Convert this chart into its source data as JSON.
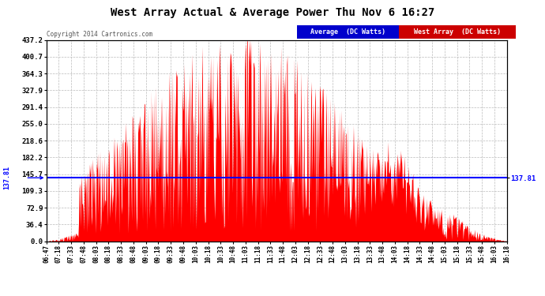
{
  "title": "West Array Actual & Average Power Thu Nov 6 16:27",
  "copyright": "Copyright 2014 Cartronics.com",
  "average_value": 137.81,
  "ymax": 437.2,
  "yticks": [
    0.0,
    36.4,
    72.9,
    109.3,
    145.7,
    182.2,
    218.6,
    255.0,
    291.4,
    327.9,
    364.3,
    400.7,
    437.2
  ],
  "legend_avg_label": "Average  (DC Watts)",
  "legend_west_label": "West Array  (DC Watts)",
  "avg_line_color": "#0000ff",
  "west_fill_color": "#ff0000",
  "background_color": "#ffffff",
  "plot_bg_color": "#ffffff",
  "grid_color": "#bbbbbb",
  "title_color": "#000000",
  "avg_label_bg": "#0000cc",
  "west_label_bg": "#cc0000",
  "xtick_labels": [
    "06:47",
    "07:18",
    "07:33",
    "07:48",
    "08:03",
    "08:18",
    "08:33",
    "08:48",
    "09:03",
    "09:18",
    "09:33",
    "09:48",
    "10:03",
    "10:18",
    "10:33",
    "10:48",
    "11:03",
    "11:18",
    "11:33",
    "11:48",
    "12:03",
    "12:18",
    "12:33",
    "12:48",
    "13:03",
    "13:18",
    "13:33",
    "13:48",
    "14:03",
    "14:18",
    "14:33",
    "14:48",
    "15:03",
    "15:18",
    "15:33",
    "15:48",
    "16:03",
    "16:18"
  ]
}
